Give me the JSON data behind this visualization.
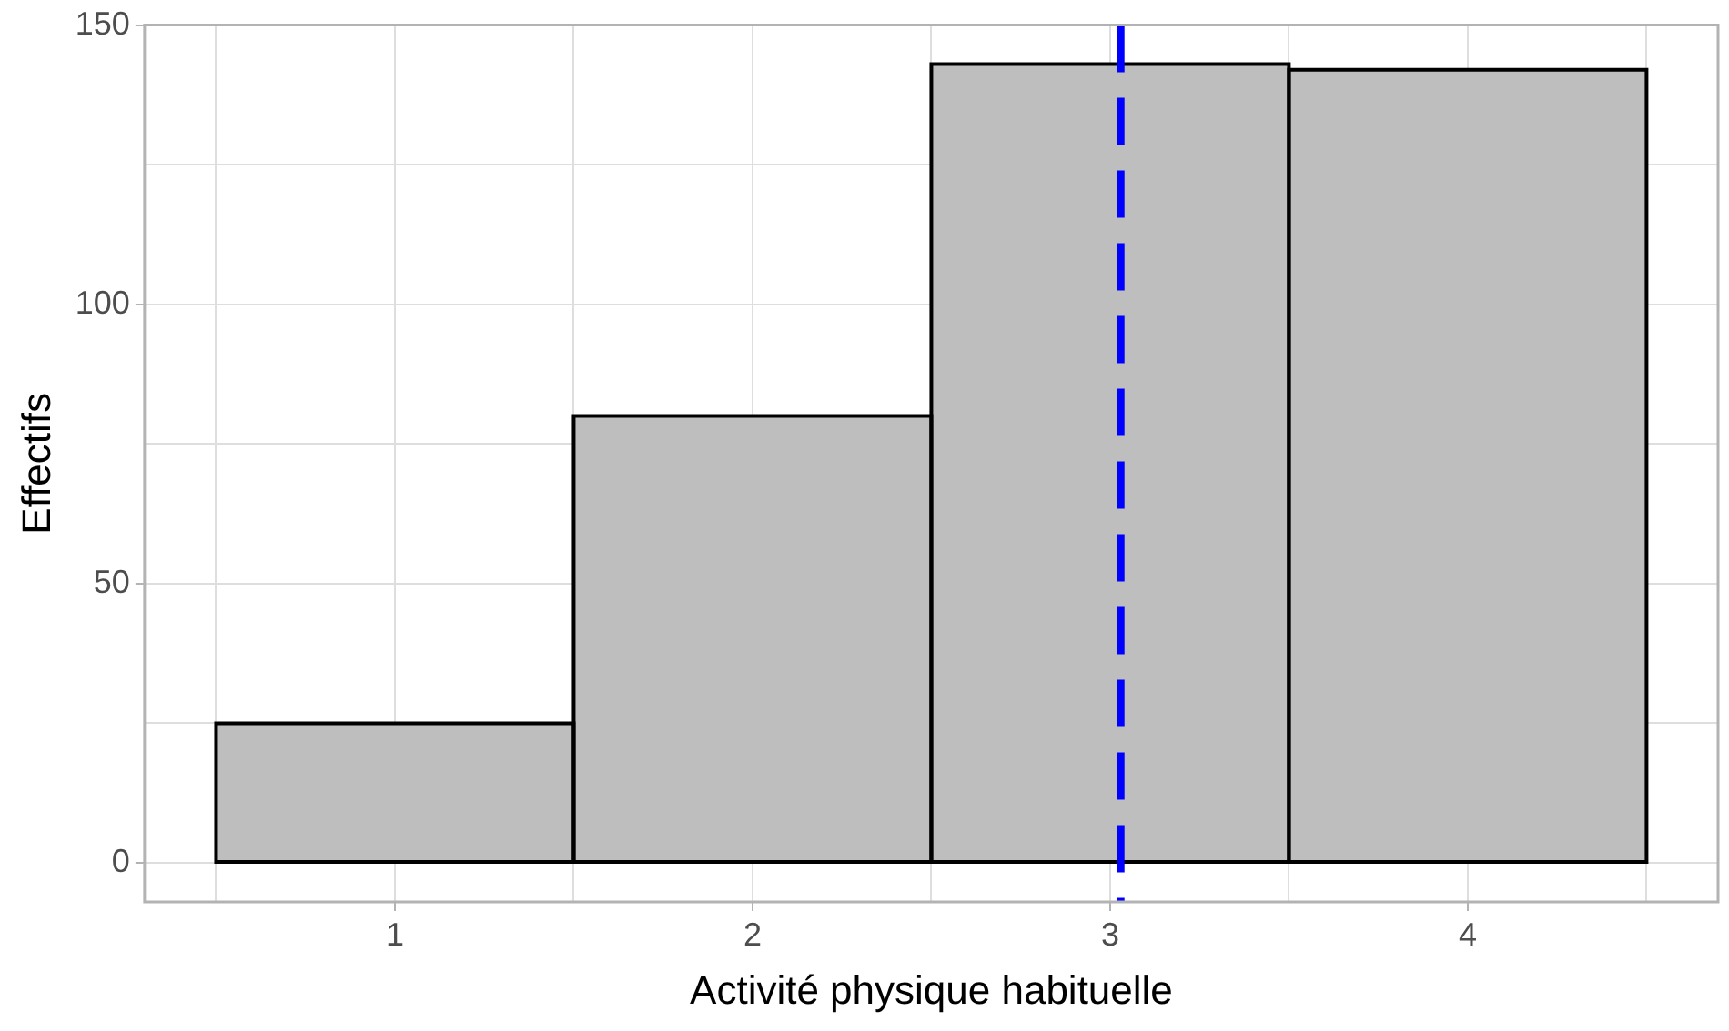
{
  "chart_data": {
    "type": "histogram",
    "xlabel": "Activité physique habituelle",
    "ylabel": "Effectifs",
    "bins": [
      0.5,
      1.5,
      2.5,
      3.5,
      4.5
    ],
    "values": [
      25,
      80,
      143,
      142
    ],
    "color": "#bebebe",
    "xlim": [
      0.3,
      4.7
    ],
    "xticks": [
      {
        "value": 0.5,
        "label": null
      },
      1,
      {
        "value": 1.5,
        "label": null
      },
      2,
      {
        "value": 2.5,
        "label": null
      },
      3,
      {
        "value": 3.5,
        "label": null
      },
      4,
      {
        "value": 4.5,
        "label": null
      }
    ],
    "ylim": [
      -7,
      150
    ],
    "yticks": [
      0,
      {
        "value": 25,
        "label": null
      },
      50,
      {
        "value": 75,
        "label": null
      },
      100,
      {
        "value": 125,
        "label": null
      },
      150
    ],
    "grid": true,
    "ref_lines": [
      {
        "axis": "x",
        "value": 3.03,
        "color": "#0000ff",
        "line_style": "dashed"
      }
    ]
  }
}
